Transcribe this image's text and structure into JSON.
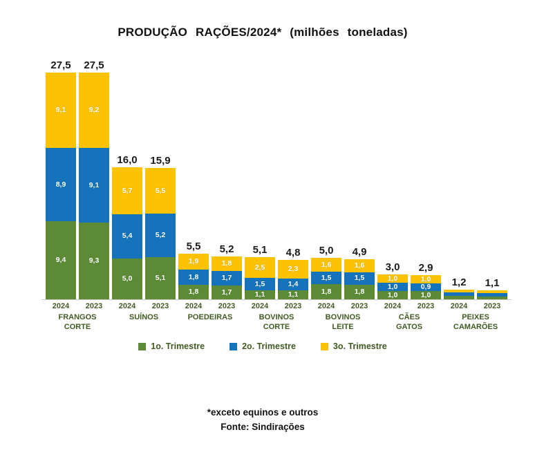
{
  "title": "PRODUÇÃO RAÇÕES/2024* (milhões toneladas)",
  "legend": {
    "items": [
      {
        "label": "1o. Trimestre",
        "color": "#5d8a36"
      },
      {
        "label": "2o. Trimestre",
        "color": "#1473ba"
      },
      {
        "label": "3o. Trimestre",
        "color": "#fcc203"
      }
    ]
  },
  "footer": {
    "note": "*exceto equinos e outros",
    "source": "Fonte: Sindirações"
  },
  "colors": {
    "q1_green": "#5d8a36",
    "q2_blue": "#1473ba",
    "q3_yellow": "#fcc203",
    "category_text": "#415a22",
    "total_text": "#1a1a1a",
    "segment_text": "#ffffff",
    "axis_line": "#c9c9c9",
    "background": "#ffffff"
  },
  "chart_data": {
    "type": "bar",
    "stacked": true,
    "title": "PRODUÇÃO RAÇÕES/2024* (milhões toneladas)",
    "unit": "milhões toneladas",
    "series_names": [
      "1o. Trimestre",
      "2o. Trimestre",
      "3o. Trimestre"
    ],
    "legend_position": "bottom",
    "grid": false,
    "ylim": [
      0,
      27.5
    ],
    "groups": [
      {
        "category": "FRANGOS CORTE",
        "category_lines": [
          "FRANGOS",
          "CORTE"
        ],
        "bars": [
          {
            "year": "2024",
            "total": 27.5,
            "total_label": "27,5",
            "segments": [
              {
                "series": "1o. Trimestre",
                "value": 9.4,
                "label": "9,4"
              },
              {
                "series": "2o. Trimestre",
                "value": 8.9,
                "label": "8,9"
              },
              {
                "series": "3o. Trimestre",
                "value": 9.1,
                "label": "9,1"
              }
            ]
          },
          {
            "year": "2023",
            "total": 27.5,
            "total_label": "27,5",
            "segments": [
              {
                "series": "1o. Trimestre",
                "value": 9.3,
                "label": "9,3"
              },
              {
                "series": "2o. Trimestre",
                "value": 9.1,
                "label": "9,1"
              },
              {
                "series": "3o. Trimestre",
                "value": 9.2,
                "label": "9,2"
              }
            ]
          }
        ]
      },
      {
        "category": "SUÍNOS",
        "category_lines": [
          "SUÍNOS"
        ],
        "bars": [
          {
            "year": "2024",
            "total": 16.0,
            "total_label": "16,0",
            "segments": [
              {
                "series": "1o. Trimestre",
                "value": 5.0,
                "label": "5,0"
              },
              {
                "series": "2o. Trimestre",
                "value": 5.4,
                "label": "5,4"
              },
              {
                "series": "3o. Trimestre",
                "value": 5.7,
                "label": "5,7"
              }
            ]
          },
          {
            "year": "2023",
            "total": 15.9,
            "total_label": "15,9",
            "segments": [
              {
                "series": "1o. Trimestre",
                "value": 5.1,
                "label": "5,1"
              },
              {
                "series": "2o. Trimestre",
                "value": 5.2,
                "label": "5,2"
              },
              {
                "series": "3o. Trimestre",
                "value": 5.5,
                "label": "5,5"
              }
            ]
          }
        ]
      },
      {
        "category": "POEDEIRAS",
        "category_lines": [
          "POEDEIRAS"
        ],
        "bars": [
          {
            "year": "2024",
            "total": 5.5,
            "total_label": "5,5",
            "segments": [
              {
                "series": "1o. Trimestre",
                "value": 1.8,
                "label": "1,8"
              },
              {
                "series": "2o. Trimestre",
                "value": 1.8,
                "label": "1,8"
              },
              {
                "series": "3o. Trimestre",
                "value": 1.9,
                "label": "1,9"
              }
            ]
          },
          {
            "year": "2023",
            "total": 5.2,
            "total_label": "5,2",
            "segments": [
              {
                "series": "1o. Trimestre",
                "value": 1.7,
                "label": "1,7"
              },
              {
                "series": "2o. Trimestre",
                "value": 1.7,
                "label": "1,7"
              },
              {
                "series": "3o. Trimestre",
                "value": 1.8,
                "label": "1,8"
              }
            ]
          }
        ]
      },
      {
        "category": "BOVINOS CORTE",
        "category_lines": [
          "BOVINOS",
          "CORTE"
        ],
        "bars": [
          {
            "year": "2024",
            "total": 5.1,
            "total_label": "5,1",
            "segments": [
              {
                "series": "1o. Trimestre",
                "value": 1.1,
                "label": "1,1"
              },
              {
                "series": "2o. Trimestre",
                "value": 1.5,
                "label": "1,5"
              },
              {
                "series": "3o. Trimestre",
                "value": 2.5,
                "label": "2,5"
              }
            ]
          },
          {
            "year": "2023",
            "total": 4.8,
            "total_label": "4,8",
            "segments": [
              {
                "series": "1o. Trimestre",
                "value": 1.1,
                "label": "1,1"
              },
              {
                "series": "2o. Trimestre",
                "value": 1.4,
                "label": "1,4"
              },
              {
                "series": "3o. Trimestre",
                "value": 2.3,
                "label": "2,3"
              }
            ]
          }
        ]
      },
      {
        "category": "BOVINOS LEITE",
        "category_lines": [
          "BOVINOS",
          "LEITE"
        ],
        "bars": [
          {
            "year": "2024",
            "total": 5.0,
            "total_label": "5,0",
            "segments": [
              {
                "series": "1o. Trimestre",
                "value": 1.8,
                "label": "1,8"
              },
              {
                "series": "2o. Trimestre",
                "value": 1.5,
                "label": "1,5"
              },
              {
                "series": "3o. Trimestre",
                "value": 1.6,
                "label": "1,6"
              }
            ]
          },
          {
            "year": "2023",
            "total": 4.9,
            "total_label": "4,9",
            "segments": [
              {
                "series": "1o. Trimestre",
                "value": 1.8,
                "label": "1,8"
              },
              {
                "series": "2o. Trimestre",
                "value": 1.5,
                "label": "1,5"
              },
              {
                "series": "3o. Trimestre",
                "value": 1.6,
                "label": "1,6"
              }
            ]
          }
        ]
      },
      {
        "category": "CÃES GATOS",
        "category_lines": [
          "CÃES",
          "GATOS"
        ],
        "bars": [
          {
            "year": "2024",
            "total": 3.0,
            "total_label": "3,0",
            "segments": [
              {
                "series": "1o. Trimestre",
                "value": 1.0,
                "label": "1,0"
              },
              {
                "series": "2o. Trimestre",
                "value": 1.0,
                "label": "1,0"
              },
              {
                "series": "3o. Trimestre",
                "value": 1.0,
                "label": "1,0"
              }
            ]
          },
          {
            "year": "2023",
            "total": 2.9,
            "total_label": "2,9",
            "segments": [
              {
                "series": "1o. Trimestre",
                "value": 1.0,
                "label": "1,0"
              },
              {
                "series": "2o. Trimestre",
                "value": 0.9,
                "label": "0,9"
              },
              {
                "series": "3o. Trimestre",
                "value": 1.0,
                "label": "1,0"
              }
            ]
          }
        ]
      },
      {
        "category": "PEIXES CAMARÕES",
        "category_lines": [
          "PEIXES",
          "CAMARÕES"
        ],
        "bars": [
          {
            "year": "2024",
            "total": 1.2,
            "total_label": "1,2",
            "segments": [
              {
                "series": "1o. Trimestre",
                "value": 0.4,
                "label": ""
              },
              {
                "series": "2o. Trimestre",
                "value": 0.4,
                "label": ""
              },
              {
                "series": "3o. Trimestre",
                "value": 0.4,
                "label": ""
              }
            ]
          },
          {
            "year": "2023",
            "total": 1.1,
            "total_label": "1,1",
            "segments": [
              {
                "series": "1o. Trimestre",
                "value": 0.37,
                "label": ""
              },
              {
                "series": "2o. Trimestre",
                "value": 0.36,
                "label": ""
              },
              {
                "series": "3o. Trimestre",
                "value": 0.37,
                "label": ""
              }
            ]
          }
        ]
      }
    ]
  }
}
